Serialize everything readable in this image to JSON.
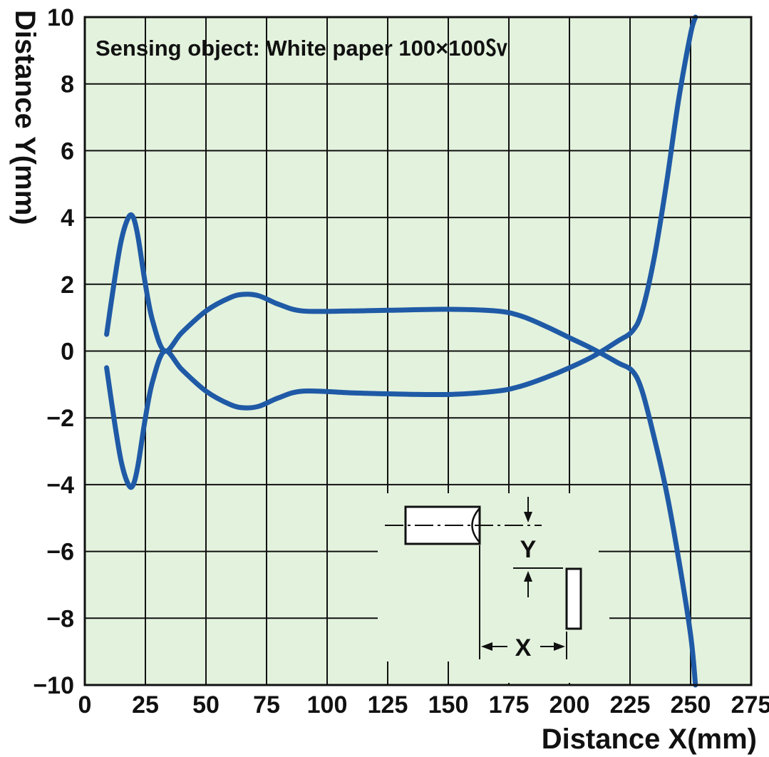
{
  "chart_data": {
    "type": "line",
    "title": "",
    "xlabel": "Distance X(mm)",
    "ylabel": "Distance Y(mm)",
    "xlim": [
      0,
      275
    ],
    "ylim": [
      -10,
      10
    ],
    "x_ticks": [
      0,
      25,
      50,
      75,
      100,
      125,
      150,
      175,
      200,
      225,
      250,
      275
    ],
    "y_ticks": [
      -10,
      -8,
      -6,
      -4,
      -2,
      0,
      2,
      4,
      6,
      8,
      10
    ],
    "y_tick_labels": [
      "−10",
      "−8",
      "−6",
      "−4",
      "−2",
      "0",
      "2",
      "4",
      "6",
      "8",
      "10"
    ],
    "grid": true,
    "legend": "none",
    "annotation": "Sensing object: White paper 100×100㏜",
    "series": [
      {
        "color": "#1f5aa6",
        "points": [
          [
            9,
            0.5
          ],
          [
            12,
            2.0
          ],
          [
            15,
            3.3
          ],
          [
            18,
            4.0
          ],
          [
            20,
            4.0
          ],
          [
            22,
            3.4
          ],
          [
            25,
            2.0
          ],
          [
            28,
            0.9
          ],
          [
            33,
            0.0
          ],
          [
            40,
            0.55
          ],
          [
            50,
            1.2
          ],
          [
            60,
            1.6
          ],
          [
            66,
            1.7
          ],
          [
            72,
            1.65
          ],
          [
            80,
            1.4
          ],
          [
            90,
            1.2
          ],
          [
            110,
            1.2
          ],
          [
            125,
            1.22
          ],
          [
            150,
            1.25
          ],
          [
            170,
            1.2
          ],
          [
            180,
            1.05
          ],
          [
            190,
            0.75
          ],
          [
            200,
            0.4
          ],
          [
            210,
            0.05
          ],
          [
            220,
            -0.35
          ],
          [
            226,
            -0.6
          ],
          [
            230,
            -1.2
          ],
          [
            235,
            -2.6
          ],
          [
            240,
            -4.2
          ],
          [
            245,
            -6.2
          ],
          [
            250,
            -8.5
          ],
          [
            252,
            -10
          ]
        ]
      },
      {
        "color": "#1f5aa6",
        "points": [
          [
            9,
            -0.5
          ],
          [
            12,
            -2.0
          ],
          [
            15,
            -3.3
          ],
          [
            18,
            -4.0
          ],
          [
            20,
            -4.0
          ],
          [
            22,
            -3.4
          ],
          [
            25,
            -2.0
          ],
          [
            28,
            -0.9
          ],
          [
            33,
            0.0
          ],
          [
            40,
            -0.55
          ],
          [
            50,
            -1.2
          ],
          [
            60,
            -1.6
          ],
          [
            66,
            -1.7
          ],
          [
            72,
            -1.65
          ],
          [
            80,
            -1.4
          ],
          [
            90,
            -1.2
          ],
          [
            110,
            -1.25
          ],
          [
            125,
            -1.28
          ],
          [
            150,
            -1.3
          ],
          [
            170,
            -1.2
          ],
          [
            180,
            -1.05
          ],
          [
            190,
            -0.8
          ],
          [
            200,
            -0.5
          ],
          [
            210,
            -0.15
          ],
          [
            220,
            0.3
          ],
          [
            226,
            0.6
          ],
          [
            230,
            1.2
          ],
          [
            235,
            2.8
          ],
          [
            240,
            5.0
          ],
          [
            245,
            7.5
          ],
          [
            250,
            9.5
          ],
          [
            252,
            10
          ]
        ]
      }
    ],
    "inset": {
      "y_label": "Y",
      "x_label": "X"
    }
  },
  "colors": {
    "plot_background": "#e3f2dd",
    "grid": "#111111",
    "curve": "#1f5aa6"
  }
}
